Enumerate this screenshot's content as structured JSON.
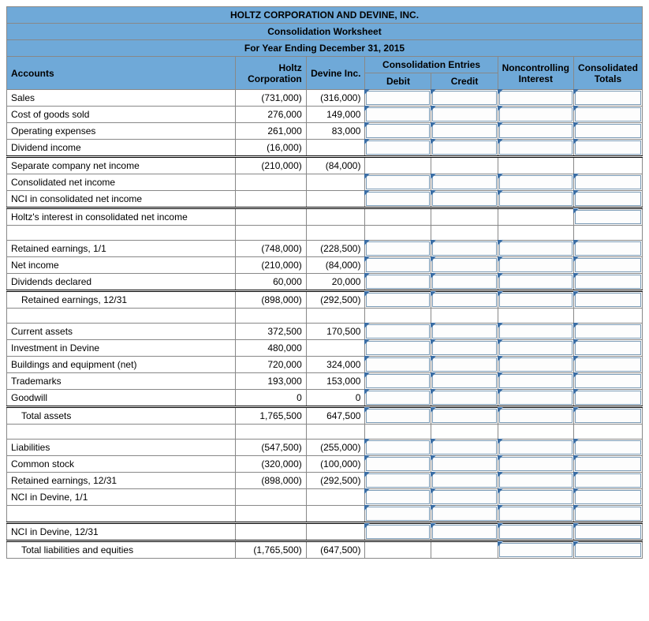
{
  "header": {
    "title": "HOLTZ CORPORATION AND DEVINE, INC.",
    "subtitle": "Consolidation Worksheet",
    "period": "For Year Ending December 31, 2015"
  },
  "columns": {
    "accounts": "Accounts",
    "holtz": "Holtz Corporation",
    "devine": "Devine Inc.",
    "consol_entries": "Consolidation Entries",
    "debit": "Debit",
    "credit": "Credit",
    "nci": "Noncontrolling Interest",
    "totals": "Consolidated Totals"
  },
  "rows": [
    {
      "id": "sales",
      "label": "Sales",
      "holtz": "(731,000)",
      "devine": "(316,000)",
      "debit": true,
      "credit": true,
      "nci": true,
      "totals": true
    },
    {
      "id": "cogs",
      "label": "Cost of goods sold",
      "holtz": "276,000",
      "devine": "149,000",
      "debit": true,
      "credit": true,
      "nci": true,
      "totals": true
    },
    {
      "id": "opex",
      "label": "Operating expenses",
      "holtz": "261,000",
      "devine": "83,000",
      "debit": true,
      "credit": true,
      "nci": true,
      "totals": true
    },
    {
      "id": "divinc",
      "label": "Dividend income",
      "holtz": "(16,000)",
      "devine": "",
      "debit": true,
      "credit": true,
      "nci": true,
      "totals": true
    },
    {
      "id": "sepni",
      "label": "Separate company net income",
      "holtz": "(210,000)",
      "devine": "(84,000)",
      "debit": false,
      "credit": false,
      "nci": false,
      "totals": false,
      "double": true
    },
    {
      "id": "consni",
      "label": "Consolidated net income",
      "holtz": "",
      "devine": "",
      "debit": true,
      "credit": true,
      "nci": true,
      "totals": true
    },
    {
      "id": "nci-consni",
      "label": "NCI in consolidated net income",
      "holtz": "",
      "devine": "",
      "debit": true,
      "credit": true,
      "nci": true,
      "totals": true
    },
    {
      "id": "holtz-int",
      "label": "Holtz's interest in consolidated net income",
      "holtz": "",
      "devine": "",
      "debit": false,
      "credit": false,
      "nci": false,
      "totals": true,
      "double": true
    },
    {
      "id": "blank1",
      "label": "",
      "holtz": "",
      "devine": "",
      "blank": true
    },
    {
      "id": "re11",
      "label": "Retained earnings, 1/1",
      "holtz": "(748,000)",
      "devine": "(228,500)",
      "debit": true,
      "credit": true,
      "nci": true,
      "totals": true
    },
    {
      "id": "netinc",
      "label": "Net income",
      "holtz": "(210,000)",
      "devine": "(84,000)",
      "debit": true,
      "credit": true,
      "nci": true,
      "totals": true
    },
    {
      "id": "divdecl",
      "label": "Dividends declared",
      "holtz": "60,000",
      "devine": "20,000",
      "debit": true,
      "credit": true,
      "nci": true,
      "totals": true
    },
    {
      "id": "re1231a",
      "label": "Retained earnings, 12/31",
      "indent": true,
      "holtz": "(898,000)",
      "devine": "(292,500)",
      "debit": true,
      "credit": true,
      "nci": true,
      "totals": true,
      "double": true
    },
    {
      "id": "blank2",
      "label": "",
      "holtz": "",
      "devine": "",
      "blank": true
    },
    {
      "id": "curasset",
      "label": "Current assets",
      "holtz": "372,500",
      "devine": "170,500",
      "debit": true,
      "credit": true,
      "nci": true,
      "totals": true
    },
    {
      "id": "inv",
      "label": "Investment in Devine",
      "holtz": "480,000",
      "devine": "",
      "debit": true,
      "credit": true,
      "nci": true,
      "totals": true
    },
    {
      "id": "bldg",
      "label": "Buildings and equipment (net)",
      "holtz": "720,000",
      "devine": "324,000",
      "debit": true,
      "credit": true,
      "nci": true,
      "totals": true
    },
    {
      "id": "tm",
      "label": "Trademarks",
      "holtz": "193,000",
      "devine": "153,000",
      "debit": true,
      "credit": true,
      "nci": true,
      "totals": true
    },
    {
      "id": "gw",
      "label": "Goodwill",
      "holtz": "0",
      "devine": "0",
      "debit": true,
      "credit": true,
      "nci": true,
      "totals": true
    },
    {
      "id": "ta",
      "label": "Total assets",
      "indent": true,
      "holtz": "1,765,500",
      "devine": "647,500",
      "debit": true,
      "credit": true,
      "nci": true,
      "totals": true,
      "double": true
    },
    {
      "id": "blank3",
      "label": "",
      "holtz": "",
      "devine": "",
      "blank": true
    },
    {
      "id": "liab",
      "label": "Liabilities",
      "holtz": "(547,500)",
      "devine": "(255,000)",
      "debit": true,
      "credit": true,
      "nci": true,
      "totals": true
    },
    {
      "id": "cs",
      "label": "Common stock",
      "holtz": "(320,000)",
      "devine": "(100,000)",
      "debit": true,
      "credit": true,
      "nci": true,
      "totals": true
    },
    {
      "id": "re1231b",
      "label": "Retained earnings, 12/31",
      "holtz": "(898,000)",
      "devine": "(292,500)",
      "debit": true,
      "credit": true,
      "nci": true,
      "totals": true
    },
    {
      "id": "nci11",
      "label": "NCI in Devine, 1/1",
      "holtz": "",
      "devine": "",
      "debit": true,
      "credit": true,
      "nci": true,
      "totals": true
    },
    {
      "id": "blank4",
      "label": "",
      "holtz": "",
      "devine": "",
      "debit": true,
      "credit": true,
      "nci": true,
      "totals": true
    },
    {
      "id": "nci1231",
      "label": "NCI in Devine, 12/31",
      "holtz": "",
      "devine": "",
      "debit": true,
      "credit": true,
      "nci": true,
      "totals": true,
      "double": true
    },
    {
      "id": "tle",
      "label": "Total liabilities and equities",
      "indent": true,
      "holtz": "(1,765,500)",
      "devine": "(647,500)",
      "debit": false,
      "credit": false,
      "nci": true,
      "totals": true,
      "double": true
    }
  ],
  "colors": {
    "header_bg": "#6fa9d8",
    "border": "#888888",
    "tab": "#3b6ea5",
    "input_border": "#7a9ab5"
  }
}
